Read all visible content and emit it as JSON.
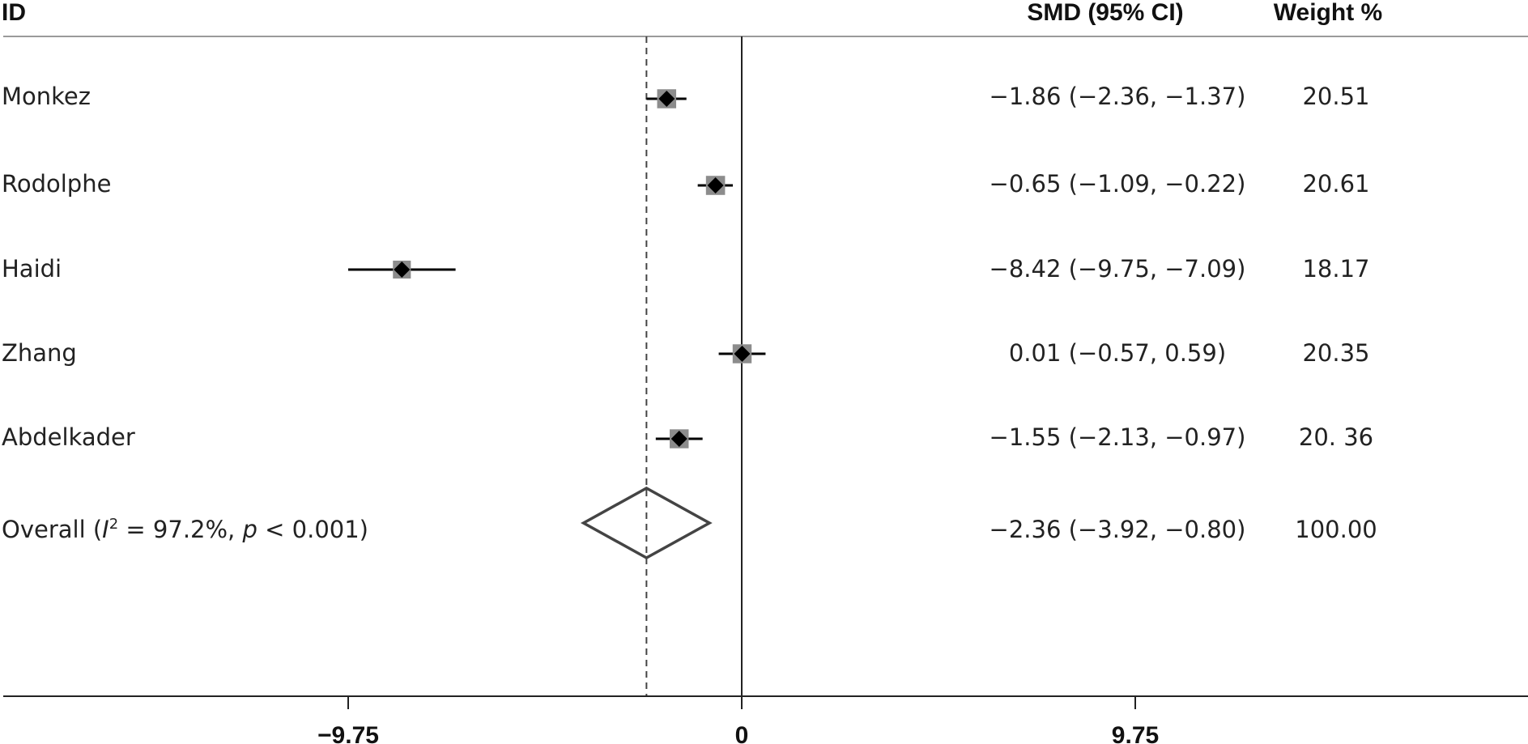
{
  "chart_data": {
    "type": "forest",
    "headers": {
      "id": "ID",
      "estimate": "SMD (95% CI)",
      "weight": "Weight %"
    },
    "studies": [
      {
        "id": "Monkez",
        "smd": -1.86,
        "lower": -2.36,
        "upper": -1.37,
        "ci_text": "−1.86 (−2.36, −1.37)",
        "weight": 20.51,
        "weight_text": "20.51"
      },
      {
        "id": "Rodolphe",
        "smd": -0.65,
        "lower": -1.09,
        "upper": -0.22,
        "ci_text": "−0.65 (−1.09, −0.22)",
        "weight": 20.61,
        "weight_text": "20.61"
      },
      {
        "id": "Haidi",
        "smd": -8.42,
        "lower": -9.75,
        "upper": -7.09,
        "ci_text": "−8.42 (−9.75, −7.09)",
        "weight": 18.17,
        "weight_text": "18.17"
      },
      {
        "id": "Zhang",
        "smd": 0.01,
        "lower": -0.57,
        "upper": 0.59,
        "ci_text": "0.01 (−0.57, 0.59)",
        "weight": 20.35,
        "weight_text": "20.35"
      },
      {
        "id": "Abdelkader",
        "smd": -1.55,
        "lower": -2.13,
        "upper": -0.97,
        "ci_text": "−1.55 (−2.13, −0.97)",
        "weight": 20.36,
        "weight_text": "20. 36"
      }
    ],
    "overall": {
      "label_prefix": "Overall (",
      "i2_symbol": "I",
      "i2_sup": "2",
      "i2_text": " = 97.2%, ",
      "p_symbol": "p",
      "p_text": " < 0.001)",
      "smd": -2.36,
      "lower": -3.92,
      "upper": -0.8,
      "ci_text": "−2.36 (−3.92, −0.80)",
      "weight": 100.0,
      "weight_text": "100.00"
    },
    "xaxis": {
      "ticks": [
        -9.75,
        0,
        9.75
      ],
      "tick_labels": [
        "−9.75",
        "0",
        "9.75"
      ],
      "range": [
        -18.4,
        19.4
      ],
      "null_line": 0,
      "overall_reference_line": -2.36
    },
    "colors": {
      "marker": "#000000",
      "weight_box": "#8c8c8c",
      "diamond_stroke": "#444444",
      "axis": "#222222",
      "header_rule": "#9a9a9a"
    }
  }
}
